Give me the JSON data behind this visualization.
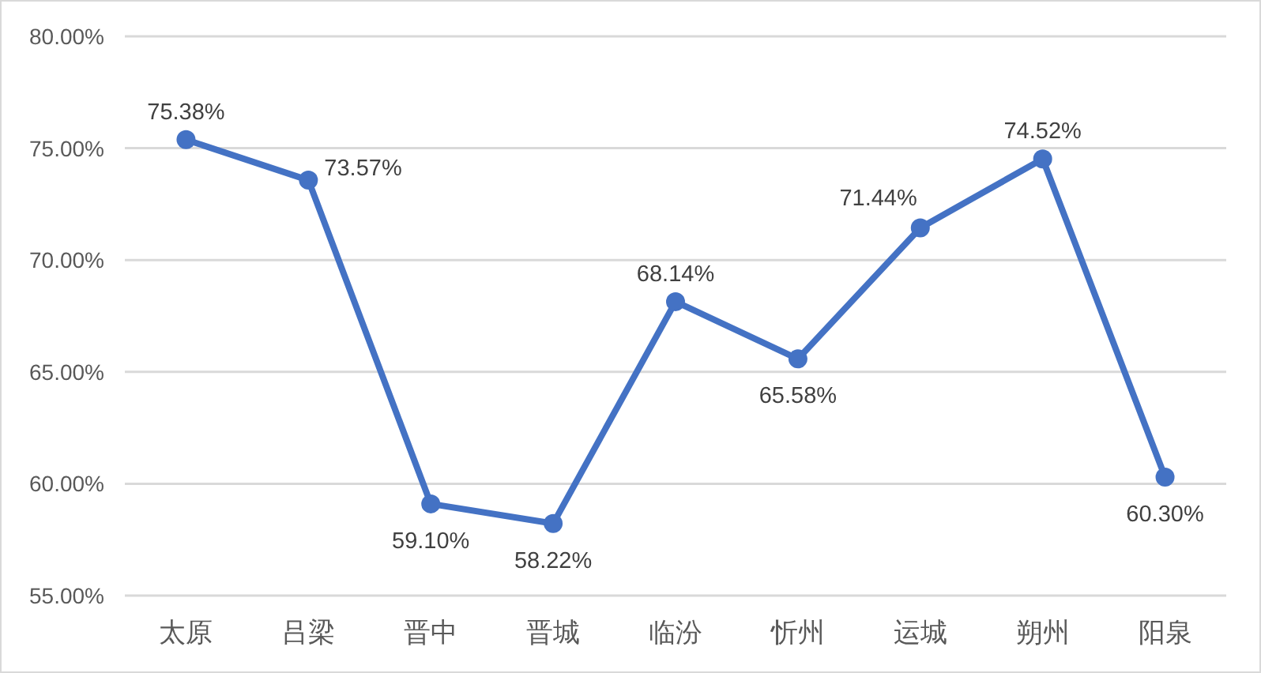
{
  "chart_data": {
    "type": "line",
    "categories": [
      "太原",
      "吕梁",
      "晋中",
      "晋城",
      "临汾",
      "忻州",
      "运城",
      "朔州",
      "阳泉"
    ],
    "series": [
      {
        "color": "#4472c4",
        "values": [
          75.38,
          73.57,
          59.1,
          58.22,
          68.14,
          65.58,
          71.44,
          74.52,
          60.3
        ],
        "value_labels": [
          "75.38%",
          "73.57%",
          "59.10%",
          "58.22%",
          "68.14%",
          "65.58%",
          "71.44%",
          "74.52%",
          "60.30%"
        ]
      }
    ],
    "ylim": [
      55,
      80
    ],
    "yticks": [
      {
        "value": 55,
        "label": "55.00%"
      },
      {
        "value": 60,
        "label": "60.00%"
      },
      {
        "value": 65,
        "label": "65.00%"
      },
      {
        "value": 70,
        "label": "70.00%"
      },
      {
        "value": 75,
        "label": "75.00%"
      },
      {
        "value": 80,
        "label": "80.00%"
      }
    ],
    "grid": "y",
    "marker": "circle",
    "line_style": "solid"
  }
}
